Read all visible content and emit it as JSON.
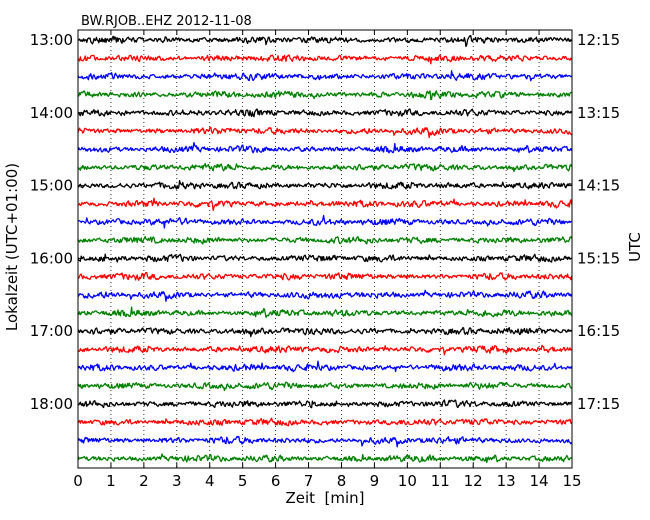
{
  "chart_data": {
    "type": "line",
    "title": "BW.RJOB..EHZ 2012-11-08",
    "xlabel": "Zeit  [min]",
    "ylabel_left": "Lokalzeit (UTC+01:00)",
    "ylabel_right": "UTC",
    "xlim": [
      0,
      15
    ],
    "x_ticks": [
      "0",
      "1",
      "2",
      "3",
      "4",
      "5",
      "6",
      "7",
      "8",
      "9",
      "10",
      "11",
      "12",
      "13",
      "14",
      "15"
    ],
    "left_ticks": [
      "13:00",
      "14:00",
      "15:00",
      "16:00",
      "17:00",
      "18:00"
    ],
    "right_ticks": [
      "12:15",
      "13:15",
      "14:15",
      "15:15",
      "16:15",
      "17:15"
    ],
    "trace_count": 24,
    "trace_colors": [
      "#000000",
      "#ff0000",
      "#0000ff",
      "#008000"
    ],
    "grid_x": true,
    "grid_style": "dotted vertical"
  }
}
